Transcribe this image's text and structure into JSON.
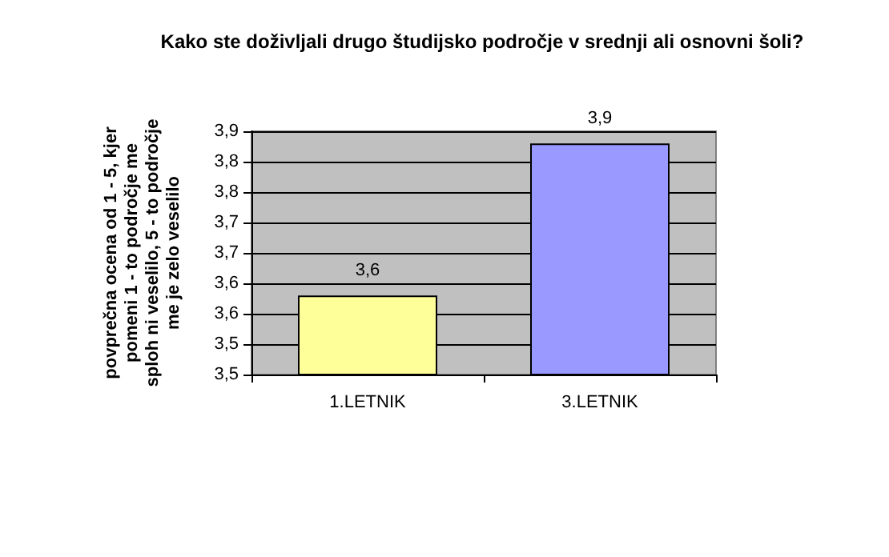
{
  "chart_data": {
    "type": "bar",
    "title": "Kako ste doživljali drugo študijsko področje v srednji ali osnovni šoli?",
    "ylabel": "povprečna ocena od 1 - 5, kjer pomeni 1 - to področje me sploh ni veselilo, 5 - to področje me je zelo veselilo",
    "categories": [
      "1.LETNIK",
      "3.LETNIK"
    ],
    "values": [
      3.63,
      3.88
    ],
    "colors": [
      "#ffff99",
      "#9999ff"
    ],
    "value_labels": [
      "3,6",
      "3,9"
    ],
    "ylim": [
      3.5,
      3.9
    ],
    "yticks": [
      {
        "value": 3.5,
        "label": "3,5"
      },
      {
        "value": 3.55,
        "label": "3,5"
      },
      {
        "value": 3.6,
        "label": "3,6"
      },
      {
        "value": 3.65,
        "label": "3,6"
      },
      {
        "value": 3.7,
        "label": "3,7"
      },
      {
        "value": 3.75,
        "label": "3,7"
      },
      {
        "value": 3.8,
        "label": "3,8"
      },
      {
        "value": 3.85,
        "label": "3,8"
      },
      {
        "value": 3.9,
        "label": "3,9"
      }
    ],
    "grid": "y"
  }
}
